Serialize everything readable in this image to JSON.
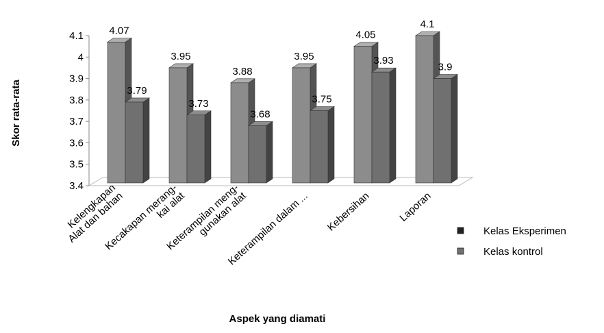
{
  "chart_data": {
    "type": "bar3d",
    "y_label": "Skor rata-rata",
    "x_label": "Aspek yang diamati",
    "categories": [
      [
        "Kelengkapan",
        "Alat dan bahan"
      ],
      [
        "Kecakapan merang-",
        "kai alat"
      ],
      [
        "Keterampilan meng-",
        "gunakan alat"
      ],
      [
        "Keterampilan dalam ..."
      ],
      [
        "Kebersihan"
      ],
      [
        "Laporan"
      ]
    ],
    "series": [
      {
        "name": "Kelas Eksperimen",
        "color": "#8c8c8c",
        "values": [
          4.07,
          3.95,
          3.88,
          3.95,
          4.05,
          4.1
        ]
      },
      {
        "name": "Kelas kontrol",
        "color": "#707070",
        "values": [
          3.79,
          3.73,
          3.68,
          3.75,
          3.93,
          3.9
        ]
      }
    ],
    "ylim": [
      3.4,
      4.1
    ],
    "yticks": [
      3.4,
      3.5,
      3.6,
      3.7,
      3.8,
      3.9,
      4,
      4.1
    ]
  }
}
